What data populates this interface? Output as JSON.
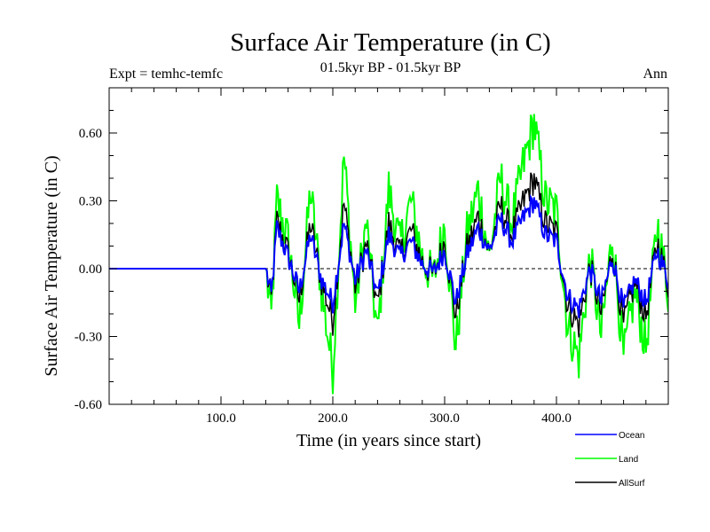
{
  "chart_data": {
    "type": "line",
    "title": "Surface Air Temperature (in C)",
    "subtitle": "01.5kyr BP - 01.5kyr BP",
    "left_label": "Expt = temhc-temfc",
    "right_label": "Ann",
    "xlabel": "Time (in years since start)",
    "ylabel": "Surface Air Temperature (in C)",
    "xlim": [
      0,
      500
    ],
    "ylim": [
      -0.6,
      0.8
    ],
    "x_ticks": [
      "100.0",
      "200.0",
      "300.0",
      "400.0"
    ],
    "x_tick_values": [
      100,
      200,
      300,
      400
    ],
    "y_ticks": [
      "0.60",
      "0.30",
      "0.00",
      "-0.30",
      "-0.60"
    ],
    "y_tick_values": [
      0.6,
      0.3,
      0.0,
      -0.3,
      -0.6
    ],
    "zero_line": true,
    "series": [
      {
        "name": "Land",
        "color": "#00ff00"
      },
      {
        "name": "AllSurf",
        "color": "#000000"
      },
      {
        "name": "Ocean",
        "color": "#0000ff"
      }
    ],
    "keypoints": {
      "x": [
        0,
        140,
        145,
        150,
        160,
        170,
        180,
        190,
        200,
        210,
        220,
        230,
        240,
        250,
        260,
        270,
        280,
        290,
        300,
        310,
        320,
        330,
        340,
        350,
        360,
        370,
        380,
        390,
        400,
        410,
        420,
        430,
        440,
        450,
        460,
        470,
        480,
        490,
        500
      ],
      "Land": [
        0,
        0,
        -0.22,
        0.3,
        0.12,
        -0.25,
        0.35,
        -0.1,
        -0.45,
        0.5,
        -0.15,
        0.2,
        -0.3,
        0.35,
        0.1,
        0.3,
        0.05,
        -0.05,
        0.2,
        -0.35,
        0.15,
        0.35,
        0.05,
        0.4,
        0.2,
        0.45,
        0.65,
        0.3,
        0.25,
        -0.25,
        -0.4,
        0.05,
        -0.3,
        0.15,
        -0.4,
        -0.1,
        -0.35,
        0.2,
        -0.1
      ],
      "Ocean": [
        0,
        0,
        -0.12,
        0.18,
        0.05,
        -0.1,
        0.15,
        -0.05,
        -0.15,
        0.2,
        -0.05,
        0.08,
        -0.12,
        0.15,
        0.05,
        0.12,
        0.02,
        -0.02,
        0.08,
        -0.15,
        0.06,
        0.18,
        0.08,
        0.22,
        0.12,
        0.22,
        0.3,
        0.15,
        0.12,
        -0.12,
        -0.18,
        0.0,
        -0.15,
        0.05,
        -0.18,
        -0.05,
        -0.15,
        0.08,
        -0.05
      ],
      "AllSurf": [
        0,
        0,
        -0.14,
        0.21,
        0.07,
        -0.14,
        0.2,
        -0.06,
        -0.23,
        0.29,
        -0.08,
        0.11,
        -0.17,
        0.2,
        0.06,
        0.17,
        0.03,
        -0.03,
        0.12,
        -0.21,
        0.09,
        0.23,
        0.07,
        0.28,
        0.15,
        0.29,
        0.4,
        0.2,
        0.16,
        -0.16,
        -0.25,
        0.01,
        -0.2,
        0.08,
        -0.25,
        -0.06,
        -0.21,
        0.12,
        -0.07
      ]
    }
  }
}
